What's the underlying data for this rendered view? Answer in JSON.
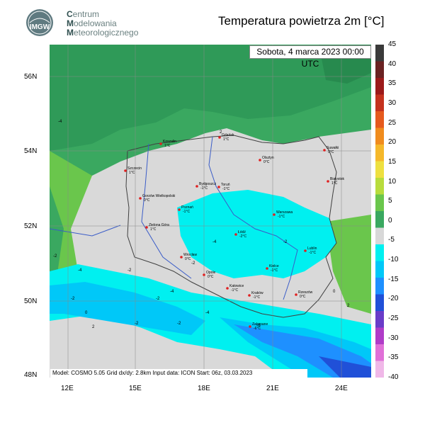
{
  "org": {
    "logo_text": "IMGW",
    "line1_initial": "C",
    "line1_rest": "entrum",
    "line2_initial": "M",
    "line2_rest": "odelowania",
    "line3_initial": "M",
    "line3_rest": "eteorologicznego"
  },
  "title": "Temperatura powietrza 2m [°C]",
  "date": "Sobota, 4 marca 2023 00:00 UTC",
  "info": "Model: COSMO 5.05  Grid dx/dy: 2.8km  Input data: ICON  Start: 06z, 03.03.2023",
  "lat_labels": [
    "56N",
    "54N",
    "52N",
    "50N",
    "48N"
  ],
  "lon_labels": [
    "12E",
    "15E",
    "18E",
    "21E",
    "24E"
  ],
  "colorbar": {
    "labels": [
      "45",
      "40",
      "35",
      "30",
      "25",
      "20",
      "15",
      "10",
      "5",
      "0",
      "-5",
      "-10",
      "-15",
      "-20",
      "-25",
      "-30",
      "-35",
      "-40"
    ],
    "colors": [
      "#3a3a3a",
      "#6a2222",
      "#9b1a1a",
      "#c4321e",
      "#e55a1e",
      "#f08c1e",
      "#f5b82a",
      "#eee040",
      "#b8dc3c",
      "#6ac64c",
      "#3aa860",
      "#d8d8d8",
      "#00f0f0",
      "#00c8f8",
      "#1e90ff",
      "#2050d8",
      "#6a3cc8",
      "#b03cc8",
      "#e070d8",
      "#f0b8e8"
    ]
  },
  "cities": [
    {
      "name": "Gdańsk",
      "temp": "1°C"
    },
    {
      "name": "Koszalin",
      "temp": "1°C"
    },
    {
      "name": "Suwałki",
      "temp": "0°C"
    },
    {
      "name": "Olsztyn",
      "temp": "0°C"
    },
    {
      "name": "Szczecin",
      "temp": "1°C"
    },
    {
      "name": "Białystok",
      "temp": "1°C"
    },
    {
      "name": "Bydgoszcz",
      "temp": "-1°C"
    },
    {
      "name": "Toruń",
      "temp": "-1°C"
    },
    {
      "name": "Gorzów Wielkopolski",
      "temp": "0°C"
    },
    {
      "name": "Poznań",
      "temp": "-1°C"
    },
    {
      "name": "Warszawa",
      "temp": "-1°C"
    },
    {
      "name": "Zielona Góra",
      "temp": "1°C"
    },
    {
      "name": "Łódź",
      "temp": "-2°C"
    },
    {
      "name": "Lublin",
      "temp": "-1°C"
    },
    {
      "name": "Wrocław",
      "temp": "0°C"
    },
    {
      "name": "Kielce",
      "temp": "-1°C"
    },
    {
      "name": "Opole",
      "temp": "0°C"
    },
    {
      "name": "Katowice",
      "temp": "-1°C"
    },
    {
      "name": "Kraków",
      "temp": "-1°C"
    },
    {
      "name": "Rzeszów",
      "temp": "0°C"
    },
    {
      "name": "Zakopane",
      "temp": "-6°C"
    }
  ],
  "contour_labels": [
    "-4",
    "2",
    "-2",
    "-4",
    "-2",
    "0",
    "2",
    "-2",
    "-4",
    "-2",
    "-6",
    "-2",
    "-2",
    "-4",
    "-2",
    "-4",
    "-2",
    "0",
    "2"
  ]
}
